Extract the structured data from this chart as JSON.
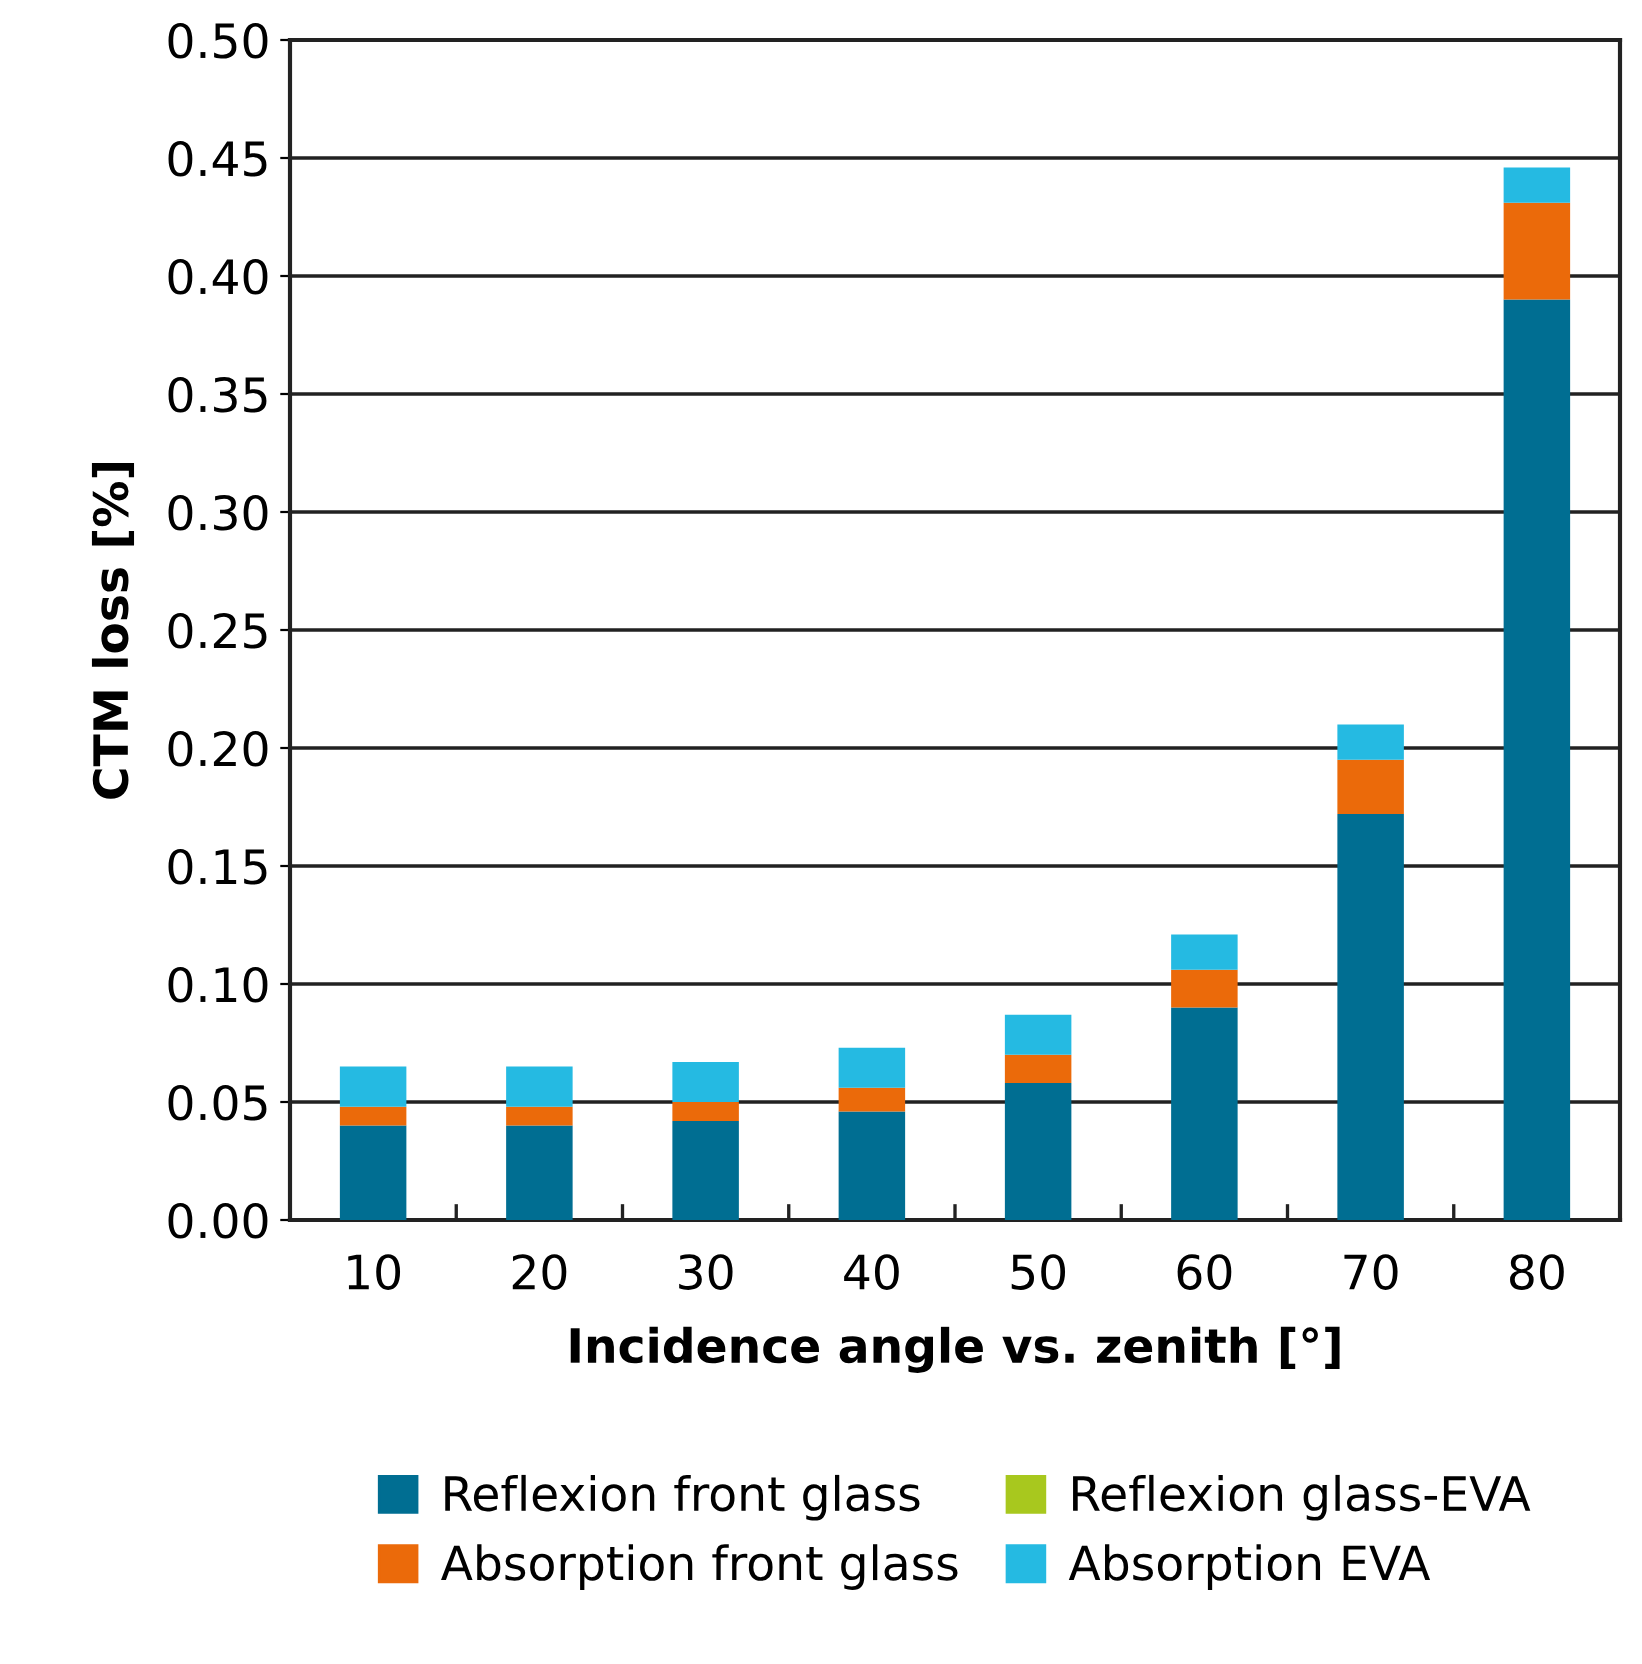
{
  "chart_data": {
    "type": "bar",
    "stacked": true,
    "xlabel": "Incidence angle vs. zenith [°]",
    "ylabel": "CTM loss [%]",
    "categories": [
      "10",
      "20",
      "30",
      "40",
      "50",
      "60",
      "70",
      "80"
    ],
    "series": [
      {
        "name": "Reflexion front glass",
        "color": "#006e92",
        "values": [
          0.04,
          0.04,
          0.042,
          0.046,
          0.058,
          0.09,
          0.172,
          0.39
        ]
      },
      {
        "name": "Absorption front glass",
        "color": "#eb6a0a",
        "values": [
          0.008,
          0.008,
          0.008,
          0.01,
          0.012,
          0.016,
          0.023,
          0.041
        ]
      },
      {
        "name": "Reflexion glass-EVA",
        "color": "#a8c81e",
        "values": [
          0,
          0,
          0,
          0,
          0,
          0,
          0,
          0
        ]
      },
      {
        "name": "Absorption EVA",
        "color": "#25bae2",
        "values": [
          0.017,
          0.017,
          0.017,
          0.017,
          0.017,
          0.015,
          0.015,
          0.015
        ]
      }
    ],
    "ylim": [
      0,
      0.5
    ],
    "yticks": [
      {
        "value": 0,
        "label": "0.00"
      },
      {
        "value": 0.05,
        "label": "0.05"
      },
      {
        "value": 0.1,
        "label": "0.10"
      },
      {
        "value": 0.15,
        "label": "0.15"
      },
      {
        "value": 0.2,
        "label": "0.20"
      },
      {
        "value": 0.25,
        "label": "0.25"
      },
      {
        "value": 0.3,
        "label": "0.30"
      },
      {
        "value": 0.35,
        "label": "0.35"
      },
      {
        "value": 0.4,
        "label": "0.40"
      },
      {
        "value": 0.45,
        "label": "0.45"
      },
      {
        "value": 0.5,
        "label": "0.50"
      }
    ],
    "grid": "y",
    "legend": "bottom"
  }
}
